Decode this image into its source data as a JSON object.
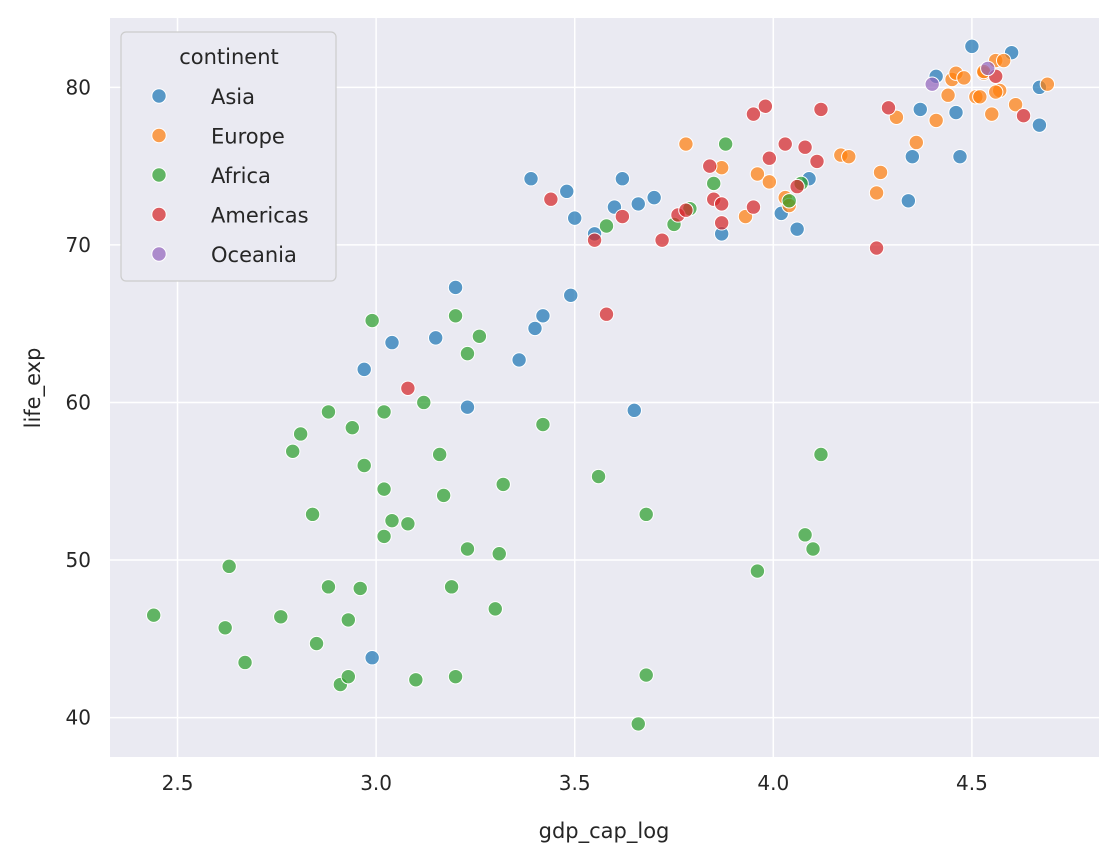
{
  "chart_data": {
    "type": "scatter",
    "xlabel": "gdp_cap_log",
    "ylabel": "life_exp",
    "xlim": [
      2.33,
      4.82
    ],
    "ylim": [
      37.5,
      84.4
    ],
    "xticks": [
      "2.5",
      "3.0",
      "3.5",
      "4.0",
      "4.5"
    ],
    "yticks": [
      "40",
      "50",
      "60",
      "70",
      "80"
    ],
    "grid": true,
    "legend": {
      "title": "continent",
      "placement": "top-left"
    },
    "series": [
      {
        "name": "Asia",
        "color": "#1f77b4",
        "points": [
          [
            3.39,
            74.2
          ],
          [
            3.48,
            73.4
          ],
          [
            3.5,
            71.7
          ],
          [
            3.55,
            70.7
          ],
          [
            3.6,
            72.4
          ],
          [
            3.62,
            74.2
          ],
          [
            3.66,
            72.6
          ],
          [
            3.7,
            73.0
          ],
          [
            3.87,
            70.7
          ],
          [
            4.02,
            72.0
          ],
          [
            4.06,
            71.0
          ],
          [
            4.09,
            74.2
          ],
          [
            4.34,
            72.8
          ],
          [
            4.35,
            75.6
          ],
          [
            4.37,
            78.6
          ],
          [
            4.41,
            80.7
          ],
          [
            4.46,
            78.4
          ],
          [
            4.47,
            75.6
          ],
          [
            4.5,
            82.6
          ],
          [
            4.6,
            82.2
          ],
          [
            4.67,
            80.0
          ],
          [
            4.67,
            77.6
          ],
          [
            3.2,
            67.3
          ],
          [
            3.49,
            66.8
          ],
          [
            3.42,
            65.5
          ],
          [
            3.4,
            64.7
          ],
          [
            3.36,
            62.7
          ],
          [
            3.15,
            64.1
          ],
          [
            3.04,
            63.8
          ],
          [
            2.97,
            62.1
          ],
          [
            3.23,
            59.7
          ],
          [
            3.65,
            59.5
          ],
          [
            2.99,
            43.8
          ]
        ]
      },
      {
        "name": "Europe",
        "color": "#ff7f0e",
        "points": [
          [
            3.78,
            76.4
          ],
          [
            3.87,
            74.9
          ],
          [
            3.93,
            71.8
          ],
          [
            3.96,
            74.5
          ],
          [
            3.99,
            74.0
          ],
          [
            4.03,
            73.0
          ],
          [
            4.04,
            72.5
          ],
          [
            4.17,
            75.7
          ],
          [
            4.19,
            75.6
          ],
          [
            4.26,
            73.3
          ],
          [
            4.27,
            74.6
          ],
          [
            4.31,
            78.1
          ],
          [
            4.36,
            76.5
          ],
          [
            4.41,
            77.9
          ],
          [
            4.44,
            79.5
          ],
          [
            4.45,
            80.5
          ],
          [
            4.46,
            80.9
          ],
          [
            4.48,
            80.6
          ],
          [
            4.51,
            79.4
          ],
          [
            4.52,
            79.4
          ],
          [
            4.53,
            80.9
          ],
          [
            4.55,
            78.3
          ],
          [
            4.56,
            81.7
          ],
          [
            4.57,
            79.8
          ],
          [
            4.56,
            79.7
          ],
          [
            4.58,
            81.7
          ],
          [
            4.61,
            78.9
          ],
          [
            4.69,
            80.2
          ],
          [
            4.53,
            81.0
          ]
        ]
      },
      {
        "name": "Africa",
        "color": "#2ca02c",
        "points": [
          [
            2.44,
            46.5
          ],
          [
            2.62,
            45.7
          ],
          [
            2.63,
            49.6
          ],
          [
            2.67,
            43.5
          ],
          [
            2.76,
            46.4
          ],
          [
            2.79,
            56.9
          ],
          [
            2.81,
            58.0
          ],
          [
            2.84,
            52.9
          ],
          [
            2.85,
            44.7
          ],
          [
            2.88,
            59.4
          ],
          [
            2.88,
            48.3
          ],
          [
            2.91,
            42.1
          ],
          [
            2.93,
            42.6
          ],
          [
            2.93,
            46.2
          ],
          [
            2.94,
            58.4
          ],
          [
            2.96,
            48.2
          ],
          [
            2.97,
            56.0
          ],
          [
            2.99,
            65.2
          ],
          [
            3.02,
            59.4
          ],
          [
            3.02,
            54.5
          ],
          [
            3.02,
            51.5
          ],
          [
            3.04,
            52.5
          ],
          [
            3.08,
            52.3
          ],
          [
            3.1,
            42.4
          ],
          [
            3.12,
            60.0
          ],
          [
            3.16,
            56.7
          ],
          [
            3.17,
            54.1
          ],
          [
            3.19,
            48.3
          ],
          [
            3.2,
            42.6
          ],
          [
            3.2,
            65.5
          ],
          [
            3.23,
            63.1
          ],
          [
            3.23,
            50.7
          ],
          [
            3.26,
            64.2
          ],
          [
            3.3,
            46.9
          ],
          [
            3.31,
            50.4
          ],
          [
            3.32,
            54.8
          ],
          [
            3.42,
            58.6
          ],
          [
            3.56,
            55.3
          ],
          [
            3.58,
            71.2
          ],
          [
            3.66,
            39.6
          ],
          [
            3.68,
            42.7
          ],
          [
            3.68,
            52.9
          ],
          [
            3.75,
            71.3
          ],
          [
            3.79,
            72.3
          ],
          [
            3.85,
            73.9
          ],
          [
            3.88,
            76.4
          ],
          [
            3.96,
            49.3
          ],
          [
            4.04,
            72.8
          ],
          [
            4.07,
            73.9
          ],
          [
            4.08,
            51.6
          ],
          [
            4.1,
            50.7
          ],
          [
            4.12,
            56.7
          ]
        ]
      },
      {
        "name": "Americas",
        "color": "#d62728",
        "points": [
          [
            3.08,
            60.9
          ],
          [
            3.44,
            72.9
          ],
          [
            3.55,
            70.3
          ],
          [
            3.58,
            65.6
          ],
          [
            3.62,
            71.8
          ],
          [
            3.72,
            70.3
          ],
          [
            3.76,
            71.9
          ],
          [
            3.78,
            72.2
          ],
          [
            3.84,
            75.0
          ],
          [
            3.85,
            72.9
          ],
          [
            3.87,
            72.6
          ],
          [
            3.87,
            71.4
          ],
          [
            3.95,
            78.3
          ],
          [
            3.95,
            72.4
          ],
          [
            3.98,
            78.8
          ],
          [
            3.99,
            75.5
          ],
          [
            4.03,
            76.4
          ],
          [
            4.06,
            73.7
          ],
          [
            4.08,
            76.2
          ],
          [
            4.11,
            75.3
          ],
          [
            4.12,
            78.6
          ],
          [
            4.26,
            69.8
          ],
          [
            4.29,
            78.7
          ],
          [
            4.56,
            80.7
          ],
          [
            4.63,
            78.2
          ]
        ]
      },
      {
        "name": "Oceania",
        "color": "#9467bd",
        "points": [
          [
            4.4,
            80.2
          ],
          [
            4.54,
            81.2
          ]
        ]
      }
    ]
  }
}
